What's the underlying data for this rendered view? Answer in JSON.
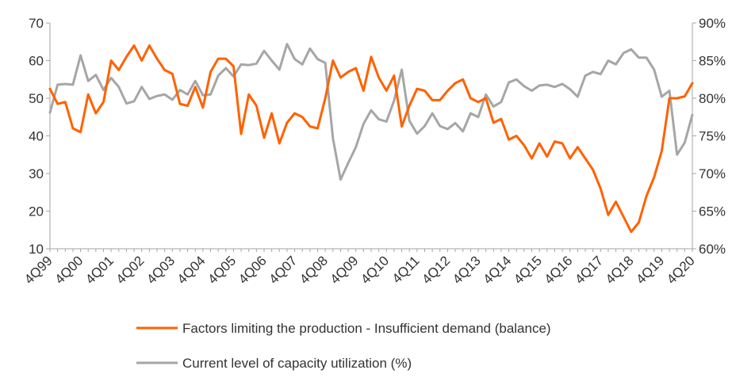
{
  "chart_data": {
    "type": "line",
    "title": "",
    "xlabel": "",
    "ylabel": "",
    "y2label": "",
    "ylim": [
      10,
      70
    ],
    "y2lim": [
      60,
      90
    ],
    "yticks": [
      10,
      20,
      30,
      40,
      50,
      60,
      70
    ],
    "y2ticks": [
      "60%",
      "65%",
      "70%",
      "75%",
      "80%",
      "85%",
      "90%"
    ],
    "grid": false,
    "legend_position": "bottom",
    "x_tick_labels": [
      "4Q99",
      "4Q00",
      "4Q01",
      "4Q02",
      "4Q03",
      "4Q04",
      "4Q05",
      "4Q06",
      "4Q07",
      "4Q08",
      "4Q09",
      "4Q10",
      "4Q11",
      "4Q12",
      "4Q13",
      "4Q14",
      "4Q15",
      "4Q16",
      "4Q17",
      "4Q18",
      "4Q19",
      "4Q20"
    ],
    "series": [
      {
        "name": "Factors limiting the production - Insufficient demand (balance)",
        "axis": "left",
        "color": "#FF6200",
        "values": [
          52.5,
          48.5,
          49,
          42,
          41,
          51,
          46,
          49,
          60,
          57.5,
          61,
          64,
          60,
          64,
          60.5,
          57.5,
          56.5,
          48.5,
          48,
          53,
          47.5,
          57,
          60.5,
          60.5,
          58.5,
          40.5,
          51,
          48,
          39.5,
          46,
          38,
          43.5,
          46,
          45,
          42.5,
          42,
          50,
          60,
          55.5,
          57,
          58,
          52,
          61,
          55.5,
          52,
          56,
          42.5,
          48,
          52.5,
          52,
          49.5,
          49.5,
          52,
          54,
          55,
          50,
          49,
          50,
          43.5,
          44.5,
          39,
          40,
          37.5,
          34,
          38,
          34.5,
          38.5,
          38,
          34,
          37,
          34,
          31,
          26,
          19,
          22.5,
          18.5,
          14.5,
          17,
          24,
          29,
          36,
          50,
          50,
          50.5,
          54
        ]
      },
      {
        "name": "Current level of capacity utilization (%)",
        "axis": "right",
        "color": "#A6A6A6",
        "values": [
          78.1,
          81.8,
          81.9,
          81.8,
          85.7,
          82.3,
          83.1,
          81.1,
          82.7,
          81.5,
          79.3,
          79.6,
          81.5,
          79.9,
          80.3,
          80.5,
          79.8,
          81.1,
          80.5,
          82.3,
          80.4,
          80.5,
          83,
          84,
          82.9,
          84.5,
          84.4,
          84.6,
          86.3,
          85,
          83.8,
          87.2,
          85.2,
          84.5,
          86.6,
          85.2,
          84.7,
          74.7,
          69.2,
          71.4,
          73.5,
          76.6,
          78.4,
          77.2,
          76.9,
          79.7,
          83.8,
          77,
          75.3,
          76.3,
          78,
          76.3,
          75.9,
          76.7,
          75.6,
          78,
          77.5,
          80.5,
          78.9,
          79.5,
          82.1,
          82.5,
          81.6,
          81,
          81.7,
          81.8,
          81.5,
          81.9,
          81.2,
          80.2,
          83,
          83.5,
          83.2,
          85,
          84.5,
          86,
          86.5,
          85.4,
          85.4,
          83.8,
          80.2,
          81,
          72.5,
          74.1,
          77.8
        ]
      }
    ]
  }
}
